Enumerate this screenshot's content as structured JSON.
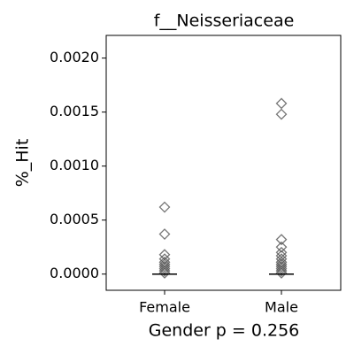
{
  "chart_data": {
    "type": "strip",
    "title": "f__Neisseriaceae",
    "x_label": "Gender p = 0.256",
    "y_label": "%_Hit",
    "categories": [
      "Female",
      "Male"
    ],
    "values": [
      [
        0.00062,
        0.00037,
        0.00018,
        0.00014,
        0.00011,
        9e-05,
        7e-05,
        5e-05,
        3e-05,
        1e-05
      ],
      [
        0.00158,
        0.00148,
        0.00032,
        0.00025,
        0.0002,
        0.00017,
        0.00014,
        0.00011,
        9e-05,
        7e-05,
        5e-05,
        3e-05,
        1e-05
      ]
    ],
    "medians": [
      0,
      0
    ],
    "color": "#555555",
    "ylim": [
      -0.00015,
      0.00221
    ],
    "yticks": [
      {
        "value": 0,
        "label": "0.0000"
      },
      {
        "value": 0.0005,
        "label": "0.0005"
      },
      {
        "value": 0.001,
        "label": "0.0010"
      },
      {
        "value": 0.0015,
        "label": "0.0015"
      },
      {
        "value": 0.002,
        "label": "0.0020"
      }
    ]
  }
}
